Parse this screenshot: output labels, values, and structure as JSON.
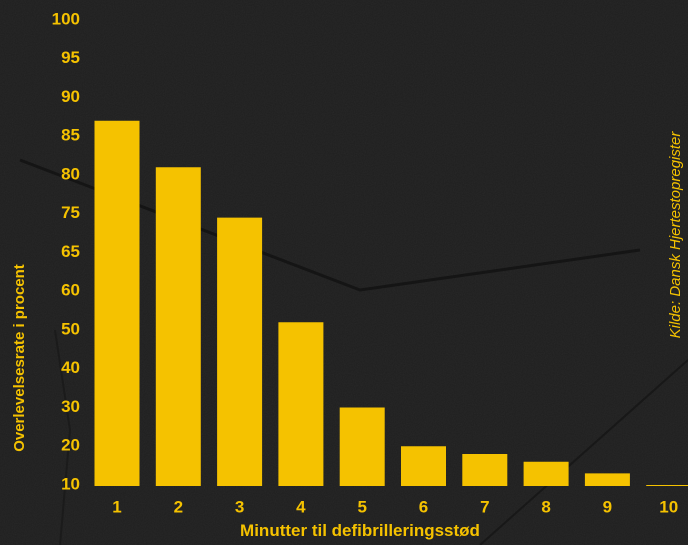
{
  "theme": {
    "background": "#1f1f1f",
    "accent": "#f5c200"
  },
  "chart_data": {
    "type": "bar",
    "title": "",
    "xlabel": "Minutter til defibrilleringsstød",
    "ylabel": "Overlevelsesrate i procent",
    "source": "Kilde: Dansk Hjertestopregister",
    "categories": [
      "1",
      "2",
      "3",
      "4",
      "5",
      "6",
      "7",
      "8",
      "9",
      "10"
    ],
    "values": [
      87,
      81,
      74,
      52,
      30,
      20,
      18,
      16,
      13,
      10
    ],
    "y_ticks": [
      "100",
      "95",
      "90",
      "85",
      "80",
      "75",
      "65",
      "60",
      "50",
      "40",
      "30",
      "20",
      "10"
    ],
    "grid": false,
    "legend": "none"
  }
}
